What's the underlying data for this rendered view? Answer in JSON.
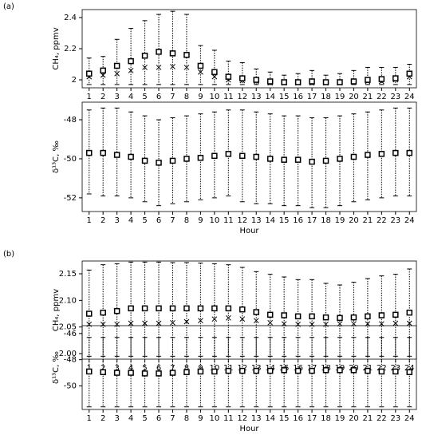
{
  "chart_data": [
    {
      "type": "errorbar",
      "panel_label": "(a)",
      "ylabel": "CH₄, ppmv",
      "categories": [
        "1",
        "2",
        "3",
        "4",
        "5",
        "6",
        "7",
        "8",
        "9",
        "10",
        "11",
        "12",
        "13",
        "14",
        "15",
        "16",
        "17",
        "18",
        "19",
        "20",
        "21",
        "22",
        "23",
        "24"
      ],
      "means": [
        2.04,
        2.06,
        2.09,
        2.12,
        2.155,
        2.18,
        2.17,
        2.16,
        2.09,
        2.05,
        2.02,
        2.01,
        2.0,
        1.99,
        1.985,
        1.985,
        1.99,
        1.985,
        1.985,
        1.99,
        2.0,
        2.005,
        2.01,
        2.04
      ],
      "medians": [
        2.02,
        2.03,
        2.04,
        2.06,
        2.08,
        2.08,
        2.085,
        2.08,
        2.05,
        2.02,
        2.0,
        1.995,
        1.99,
        1.98,
        1.98,
        1.98,
        1.98,
        1.98,
        1.98,
        1.985,
        1.99,
        1.99,
        2.0,
        2.02
      ],
      "lower": [
        1.97,
        1.97,
        1.97,
        1.97,
        1.97,
        1.97,
        1.97,
        1.97,
        1.97,
        1.97,
        1.97,
        1.97,
        1.97,
        1.97,
        1.97,
        1.97,
        1.97,
        1.97,
        1.97,
        1.97,
        1.97,
        1.97,
        1.97,
        1.97
      ],
      "upper": [
        2.14,
        2.15,
        2.26,
        2.33,
        2.38,
        2.42,
        2.44,
        2.42,
        2.22,
        2.19,
        2.12,
        2.11,
        2.07,
        2.05,
        2.03,
        2.04,
        2.06,
        2.03,
        2.04,
        2.06,
        2.08,
        2.08,
        2.08,
        2.1
      ],
      "ylim": [
        1.949,
        2.451
      ],
      "yticks": [
        2.0,
        2.2,
        2.4
      ],
      "color": "#000000"
    },
    {
      "type": "errorbar",
      "ylabel": "δ¹³C, ‰",
      "xlabel": "Hour",
      "categories": [
        "1",
        "2",
        "3",
        "4",
        "5",
        "6",
        "7",
        "8",
        "9",
        "10",
        "11",
        "12",
        "13",
        "14",
        "15",
        "16",
        "17",
        "18",
        "19",
        "20",
        "21",
        "22",
        "23",
        "24"
      ],
      "means": [
        -49.7,
        -49.7,
        -49.8,
        -49.9,
        -50.1,
        -50.2,
        -50.1,
        -50.0,
        -49.95,
        -49.85,
        -49.75,
        -49.85,
        -49.9,
        -50.0,
        -50.05,
        -50.05,
        -50.15,
        -50.1,
        -50.0,
        -49.9,
        -49.8,
        -49.75,
        -49.7,
        -49.7
      ],
      "lower": [
        -51.8,
        -51.9,
        -51.9,
        -52.0,
        -52.2,
        -52.4,
        -52.3,
        -52.2,
        -52.1,
        -52.0,
        -51.9,
        -52.2,
        -52.3,
        -52.3,
        -52.4,
        -52.4,
        -52.5,
        -52.5,
        -52.4,
        -52.2,
        -52.1,
        -52.0,
        -51.9,
        -51.9
      ],
      "upper": [
        -47.5,
        -47.4,
        -47.4,
        -47.6,
        -47.8,
        -48.0,
        -47.9,
        -47.8,
        -47.7,
        -47.6,
        -47.5,
        -47.5,
        -47.6,
        -47.7,
        -47.8,
        -47.8,
        -47.9,
        -47.9,
        -47.8,
        -47.7,
        -47.6,
        -47.5,
        -47.4,
        -47.4
      ],
      "ylim": [
        -52.7,
        -47.1
      ],
      "yticks": [
        -48,
        -50,
        -52
      ],
      "color": "#000000"
    },
    {
      "type": "errorbar",
      "panel_label": "(b)",
      "ylabel": "CH₄, ppmv",
      "categories": [
        "1",
        "2",
        "3",
        "4",
        "5",
        "6",
        "7",
        "8",
        "9",
        "10",
        "11",
        "12",
        "13",
        "14",
        "15",
        "16",
        "17",
        "18",
        "19",
        "20",
        "21",
        "22",
        "23",
        "24"
      ],
      "means": [
        2.075,
        2.077,
        2.08,
        2.085,
        2.085,
        2.085,
        2.085,
        2.085,
        2.085,
        2.085,
        2.085,
        2.083,
        2.078,
        2.073,
        2.072,
        2.07,
        2.07,
        2.068,
        2.067,
        2.068,
        2.07,
        2.072,
        2.073,
        2.077
      ],
      "medians": [
        2.055,
        2.055,
        2.055,
        2.057,
        2.057,
        2.057,
        2.058,
        2.06,
        2.062,
        2.065,
        2.067,
        2.065,
        2.062,
        2.058,
        2.056,
        2.055,
        2.055,
        2.055,
        2.056,
        2.056,
        2.056,
        2.056,
        2.057,
        2.057
      ],
      "lower": [
        1.995,
        1.995,
        1.995,
        1.995,
        1.995,
        1.995,
        1.995,
        1.995,
        1.995,
        1.995,
        1.995,
        1.995,
        1.995,
        1.995,
        1.995,
        1.995,
        1.995,
        1.995,
        1.995,
        1.995,
        1.995,
        1.995,
        1.995,
        1.995
      ],
      "upper": [
        2.157,
        2.167,
        2.169,
        2.172,
        2.172,
        2.172,
        2.171,
        2.171,
        2.17,
        2.169,
        2.167,
        2.162,
        2.154,
        2.149,
        2.144,
        2.139,
        2.139,
        2.132,
        2.129,
        2.134,
        2.141,
        2.146,
        2.149,
        2.159
      ],
      "ylim": [
        1.9895,
        2.174
      ],
      "yticks": [
        {
          "value": 2,
          "label": "2.00"
        },
        2.05,
        {
          "value": 2.1,
          "label": "2.10"
        },
        2.15
      ],
      "color": "#000000"
    },
    {
      "type": "errorbar",
      "ylabel": "δ¹³C, ‰",
      "xlabel": "Hour",
      "categories": [
        "1",
        "2",
        "3",
        "4",
        "5",
        "6",
        "7",
        "8",
        "9",
        "10",
        "11",
        "12",
        "13",
        "14",
        "15",
        "16",
        "17",
        "18",
        "19",
        "20",
        "21",
        "22",
        "23",
        "24"
      ],
      "means": [
        -48.9,
        -48.95,
        -49.0,
        -49.0,
        -49.05,
        -49.05,
        -49.0,
        -48.95,
        -48.9,
        -48.9,
        -48.85,
        -48.85,
        -48.85,
        -48.85,
        -48.8,
        -48.85,
        -48.85,
        -48.8,
        -48.8,
        -48.8,
        -48.85,
        -48.9,
        -48.9,
        -48.95
      ],
      "lower": [
        -51.6,
        -51.6,
        -51.6,
        -51.6,
        -51.6,
        -51.6,
        -51.6,
        -51.6,
        -51.6,
        -51.6,
        -51.6,
        -51.6,
        -51.6,
        -51.6,
        -51.6,
        -51.6,
        -51.6,
        -51.6,
        -51.6,
        -51.6,
        -51.6,
        -51.6,
        -51.6,
        -51.6
      ],
      "upper": [
        -46.3,
        -46.3,
        -46.3,
        -46.3,
        -46.3,
        -46.3,
        -46.3,
        -46.3,
        -46.3,
        -46.3,
        -46.3,
        -46.3,
        -46.3,
        -46.3,
        -46.3,
        -46.3,
        -46.3,
        -46.3,
        -46.3,
        -46.3,
        -46.3,
        -46.3,
        -46.3,
        -46.3
      ],
      "ylim": [
        -51.8,
        -45.4
      ],
      "yticks": [
        -46,
        -48,
        -50
      ],
      "color": "#000000"
    }
  ]
}
